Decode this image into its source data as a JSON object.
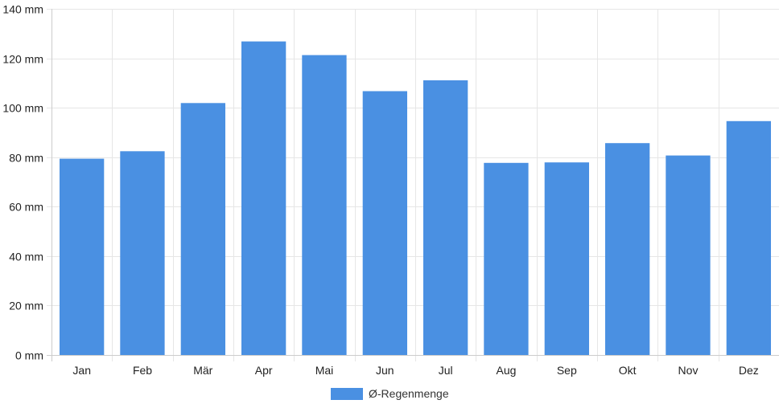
{
  "chart_data": {
    "type": "bar",
    "categories": [
      "Jan",
      "Feb",
      "Mär",
      "Apr",
      "Mai",
      "Jun",
      "Jul",
      "Aug",
      "Sep",
      "Okt",
      "Nov",
      "Dez"
    ],
    "series": [
      {
        "name": "Ø-Regenmenge",
        "color": "#4a90e2",
        "values": [
          79.4,
          82.4,
          101.9,
          126.8,
          121.3,
          106.7,
          111.1,
          77.7,
          77.9,
          85.7,
          80.7,
          94.6
        ]
      }
    ],
    "y_unit": "mm",
    "ylim": [
      0,
      140
    ],
    "yticks": [
      0,
      20,
      40,
      60,
      80,
      100,
      120,
      140
    ],
    "ytick_labels": [
      "0 mm",
      "20 mm",
      "40 mm",
      "60 mm",
      "80 mm",
      "100 mm",
      "120 mm",
      "140 mm"
    ],
    "grid": true,
    "legend_position": "bottom-center"
  }
}
